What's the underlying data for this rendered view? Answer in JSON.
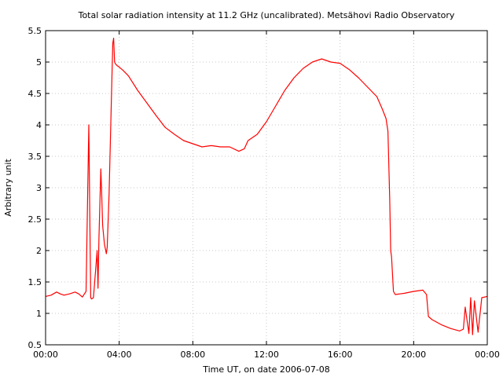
{
  "chart_data": {
    "type": "line",
    "title": "Total solar radiation intensity at 11.2 GHz (uncalibrated). Metsähovi Radio Observatory",
    "xlabel": "Time UT, on date 2006-07-08",
    "ylabel": "Arbitrary unit",
    "x_unit": "hours UT",
    "xlim": [
      0,
      24
    ],
    "ylim": [
      0.5,
      5.5
    ],
    "x_ticks": [
      0,
      4,
      8,
      12,
      16,
      20,
      24
    ],
    "x_tick_labels": [
      "00:00",
      "04:00",
      "08:00",
      "12:00",
      "16:00",
      "20:00",
      "00:00"
    ],
    "y_ticks": [
      0.5,
      1,
      1.5,
      2,
      2.5,
      3,
      3.5,
      4,
      4.5,
      5,
      5.5
    ],
    "y_tick_labels": [
      "0.5",
      "1",
      "1.5",
      "2",
      "2.5",
      "3",
      "3.5",
      "4",
      "4.5",
      "5",
      "5.5"
    ],
    "grid": true,
    "series": [
      {
        "color": "#ff0000",
        "x": [
          0,
          0.3,
          0.6,
          0.8,
          1.0,
          1.3,
          1.6,
          1.8,
          2.0,
          2.2,
          2.35,
          2.45,
          2.5,
          2.6,
          2.8,
          2.85,
          2.9,
          3.0,
          3.05,
          3.1,
          3.2,
          3.3,
          3.35,
          3.45,
          3.6,
          3.65,
          3.7,
          3.75,
          3.8,
          3.9,
          4.0,
          4.2,
          4.5,
          5.0,
          5.5,
          6.0,
          6.5,
          7.0,
          7.5,
          8.0,
          8.5,
          9.0,
          9.5,
          10.0,
          10.5,
          10.8,
          11.0,
          11.5,
          12.0,
          12.5,
          13.0,
          13.5,
          14.0,
          14.5,
          15.0,
          15.5,
          16.0,
          16.5,
          17.0,
          17.5,
          18.0,
          18.3,
          18.5,
          18.6,
          18.7,
          18.75,
          18.8,
          18.9,
          19.0,
          19.5,
          20.0,
          20.5,
          20.7,
          20.8,
          21.0,
          21.5,
          22.0,
          22.5,
          22.7,
          22.8,
          23.0,
          23.1,
          23.2,
          23.3,
          23.5,
          23.7,
          24.0
        ],
        "y": [
          1.27,
          1.29,
          1.34,
          1.31,
          1.29,
          1.31,
          1.34,
          1.31,
          1.26,
          1.35,
          4.0,
          1.25,
          1.23,
          1.25,
          2.0,
          1.4,
          2.2,
          3.3,
          2.9,
          2.4,
          2.1,
          1.95,
          2.05,
          2.9,
          4.7,
          5.3,
          5.38,
          5.0,
          4.97,
          4.94,
          4.92,
          4.87,
          4.78,
          4.55,
          4.35,
          4.15,
          3.96,
          3.85,
          3.75,
          3.7,
          3.65,
          3.67,
          3.65,
          3.65,
          3.58,
          3.62,
          3.75,
          3.85,
          4.05,
          4.3,
          4.55,
          4.75,
          4.9,
          5.0,
          5.05,
          5.0,
          4.98,
          4.88,
          4.75,
          4.6,
          4.45,
          4.25,
          4.1,
          3.9,
          2.8,
          2.0,
          1.9,
          1.35,
          1.3,
          1.32,
          1.35,
          1.37,
          1.3,
          0.95,
          0.9,
          0.82,
          0.76,
          0.72,
          0.75,
          1.1,
          0.68,
          1.25,
          0.66,
          1.2,
          0.7,
          1.25,
          1.27
        ]
      }
    ]
  }
}
